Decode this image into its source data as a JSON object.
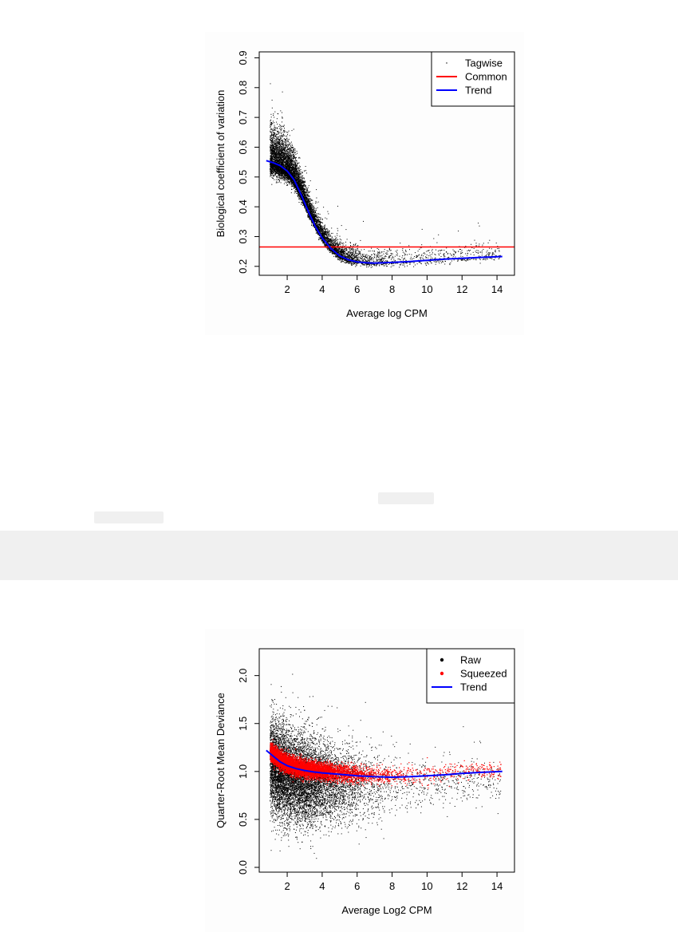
{
  "chart_data": [
    {
      "type": "scatter",
      "title": "",
      "xlabel": "Average log CPM",
      "ylabel": "Biological coefficient of variation",
      "xlim": [
        0.4,
        15.0
      ],
      "ylim": [
        0.17,
        0.92
      ],
      "xticks": [
        2,
        4,
        6,
        8,
        10,
        12,
        14
      ],
      "yticks": [
        0.2,
        0.3,
        0.4,
        0.5,
        0.6,
        0.7,
        0.8,
        0.9
      ],
      "grid": false,
      "legend_position": "top-right",
      "legend": [
        {
          "label": "Tagwise",
          "kind": "point",
          "color": "#000000"
        },
        {
          "label": "Common",
          "kind": "line",
          "color": "#ff0000"
        },
        {
          "label": "Trend",
          "kind": "line",
          "color": "#0000ff"
        }
      ],
      "series": [
        {
          "name": "Tagwise",
          "kind": "points",
          "color": "#000000",
          "count": 9000,
          "description_of_distribution": "dense cloud following trend, wide at low CPM"
        },
        {
          "name": "Common",
          "kind": "hline",
          "color": "#ff0000",
          "y": 0.265
        },
        {
          "name": "Trend",
          "kind": "line",
          "color": "#0000ff",
          "x": [
            0.8,
            1.2,
            1.6,
            2.0,
            2.4,
            2.8,
            3.2,
            3.6,
            4.0,
            4.5,
            5.0,
            5.5,
            6.0,
            6.5,
            7.0,
            7.5,
            8.0,
            9.0,
            10.0,
            11.0,
            12.0,
            13.0,
            14.3
          ],
          "y": [
            0.555,
            0.548,
            0.538,
            0.52,
            0.49,
            0.44,
            0.385,
            0.335,
            0.295,
            0.26,
            0.235,
            0.222,
            0.215,
            0.212,
            0.211,
            0.212,
            0.213,
            0.216,
            0.22,
            0.224,
            0.227,
            0.23,
            0.233
          ]
        }
      ]
    },
    {
      "type": "scatter",
      "title": "",
      "xlabel": "Average Log2 CPM",
      "ylabel": "Quarter-Root Mean Deviance",
      "xlim": [
        0.4,
        15.0
      ],
      "ylim": [
        -0.05,
        2.28
      ],
      "xticks": [
        2,
        4,
        6,
        8,
        10,
        12,
        14
      ],
      "yticks": [
        0.0,
        0.5,
        1.0,
        1.5,
        2.0
      ],
      "grid": false,
      "legend_position": "top-right",
      "legend": [
        {
          "label": "Raw",
          "kind": "point",
          "color": "#000000"
        },
        {
          "label": "Squeezed",
          "kind": "point",
          "color": "#ff0000"
        },
        {
          "label": "Trend",
          "kind": "line",
          "color": "#0000ff"
        }
      ],
      "series": [
        {
          "name": "Raw",
          "kind": "points",
          "color": "#000000",
          "count": 9000
        },
        {
          "name": "Squeezed",
          "kind": "points",
          "color": "#ff0000",
          "count": 7000
        },
        {
          "name": "Trend",
          "kind": "line",
          "color": "#0000ff",
          "x": [
            0.8,
            1.2,
            1.6,
            2.0,
            2.5,
            3.0,
            3.5,
            4.0,
            5.0,
            6.0,
            7.0,
            8.0,
            9.0,
            10.0,
            11.0,
            12.0,
            13.0,
            14.3
          ],
          "y": [
            1.22,
            1.16,
            1.1,
            1.06,
            1.03,
            1.01,
            0.995,
            0.985,
            0.97,
            0.955,
            0.945,
            0.94,
            0.945,
            0.955,
            0.965,
            0.98,
            0.99,
            1.0
          ]
        }
      ]
    }
  ]
}
